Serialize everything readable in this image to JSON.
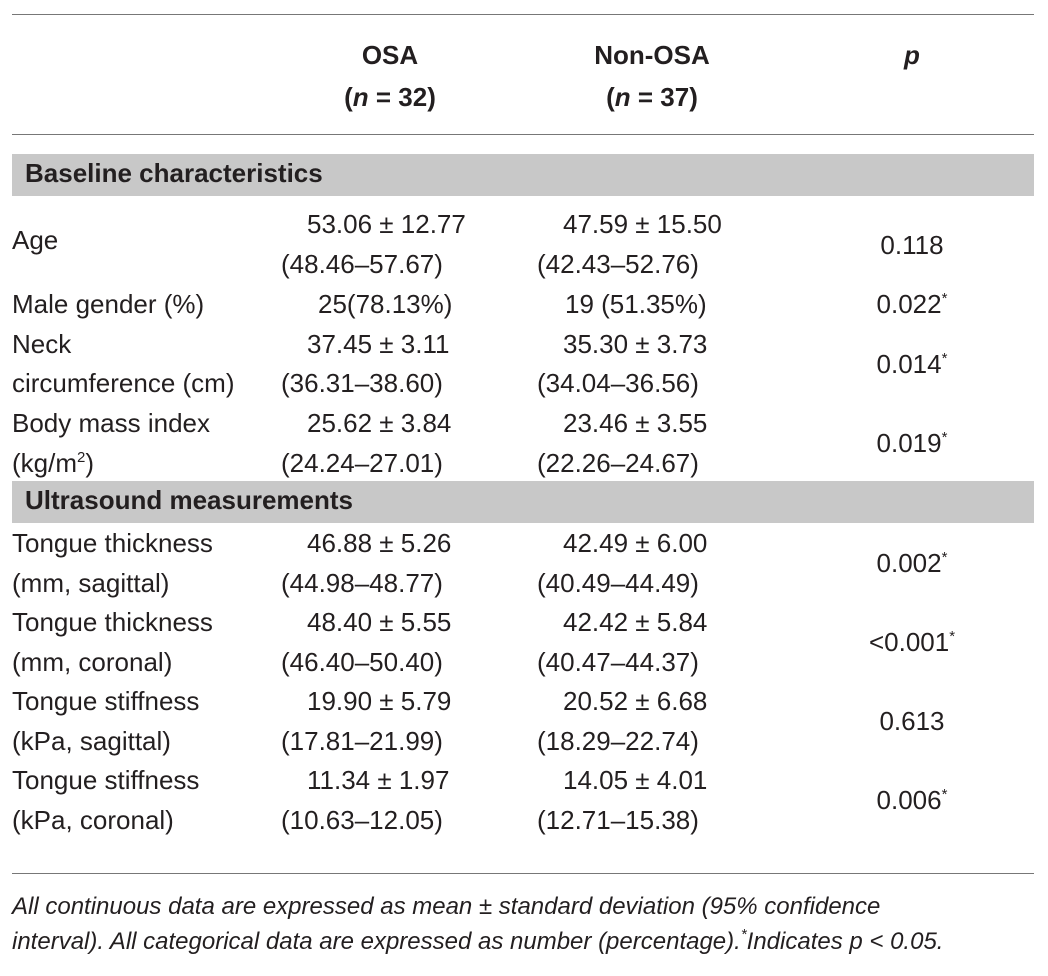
{
  "header": {
    "osa": "OSA",
    "osa_n_label": "n",
    "osa_n_value": " = 32)",
    "non_osa": "Non-OSA",
    "non_osa_n_label": "n",
    "non_osa_n_value": " = 37)",
    "p": "p"
  },
  "sections": {
    "baseline": "Baseline characteristics",
    "ultrasound": "Ultrasound measurements"
  },
  "rows": {
    "age": {
      "label1": "Age",
      "osa1": "53.06 ± 12.77",
      "osa2": "(48.46–57.67)",
      "non1": "47.59 ± 15.50",
      "non2": "(42.43–52.76)",
      "p": "0.118",
      "sig": ""
    },
    "male": {
      "label1": "Male gender (%)",
      "osa1": "25(78.13%)",
      "non1": "19 (51.35%)",
      "p": "0.022",
      "sig": "*"
    },
    "neck": {
      "label1": "Neck",
      "label2": "circumference (cm)",
      "osa1": "37.45 ± 3.11",
      "osa2": "(36.31–38.60)",
      "non1": "35.30 ± 3.73",
      "non2": "(34.04–36.56)",
      "p": "0.014",
      "sig": "*"
    },
    "bmi": {
      "label1": "Body mass index",
      "label2a": "(kg/m",
      "label2sup": "2",
      "label2b": ")",
      "osa1": "25.62 ± 3.84",
      "osa2": "(24.24–27.01)",
      "non1": "23.46 ± 3.55",
      "non2": "(22.26–24.67)",
      "p": "0.019",
      "sig": "*"
    },
    "tts": {
      "label1": "Tongue thickness",
      "label2": "(mm, sagittal)",
      "osa1": "46.88 ± 5.26",
      "osa2": "(44.98–48.77)",
      "non1": "42.49 ± 6.00",
      "non2": "(40.49–44.49)",
      "p": "0.002",
      "sig": "*"
    },
    "ttc": {
      "label1": "Tongue thickness",
      "label2": "(mm, coronal)",
      "osa1": "48.40 ± 5.55",
      "osa2": "(46.40–50.40)",
      "non1": "42.42 ± 5.84",
      "non2": "(40.47–44.37)",
      "p": "<0.001",
      "sig": "*"
    },
    "tss": {
      "label1": "Tongue stiffness",
      "label2": "(kPa, sagittal)",
      "osa1": "19.90 ± 5.79",
      "osa2": "(17.81–21.99)",
      "non1": "20.52 ± 6.68",
      "non2": "(18.29–22.74)",
      "p": "0.613",
      "sig": ""
    },
    "tsc": {
      "label1": "Tongue stiffness",
      "label2": "(kPa, coronal)",
      "osa1": "11.34 ± 1.97",
      "osa2": "(10.63–12.05)",
      "non1": "14.05 ± 4.01",
      "non2": "(12.71–15.38)",
      "p": "0.006",
      "sig": "*"
    }
  },
  "footnote": {
    "line1": "All continuous data are expressed as mean ± standard deviation (95% confidence",
    "line2a": "interval). All categorical data are expressed as number (percentage).",
    "line2sup": "*",
    "line2b": "Indicates p < 0.05."
  }
}
